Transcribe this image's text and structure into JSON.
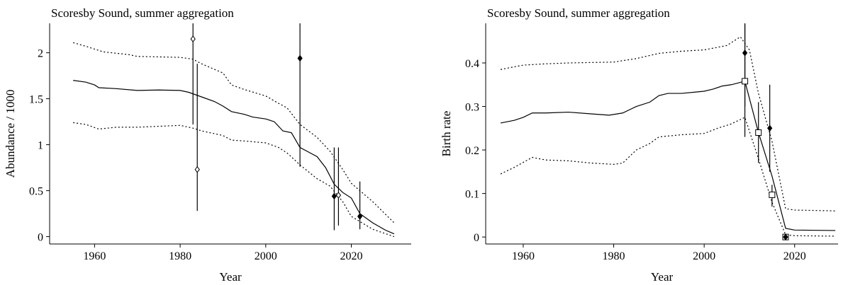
{
  "chart_data": [
    {
      "type": "line",
      "title": "Scoresby Sound, summer aggregation",
      "x_label": "Year",
      "y_label": "Abundance / 1000",
      "xlim": [
        1949.5,
        2034
      ],
      "ylim": [
        -0.08,
        2.32
      ],
      "xticks": [
        1960,
        1980,
        2000,
        2020
      ],
      "yticks": [
        0,
        0.5,
        1,
        1.5,
        2
      ],
      "series": [
        {
          "style": "solid",
          "color": "#000000",
          "x": [
            1955,
            1958,
            1960,
            1961,
            1965,
            1970,
            1975,
            1980,
            1982,
            1985,
            1988,
            1990,
            1992,
            1995,
            1997,
            2000,
            2002,
            2004,
            2006,
            2007,
            2008,
            2010,
            2012,
            2014,
            2016,
            2018,
            2020,
            2022,
            2025,
            2028,
            2030
          ],
          "values": [
            1.7,
            1.68,
            1.65,
            1.62,
            1.61,
            1.59,
            1.595,
            1.59,
            1.57,
            1.52,
            1.47,
            1.42,
            1.36,
            1.33,
            1.3,
            1.28,
            1.25,
            1.15,
            1.13,
            1.05,
            0.97,
            0.92,
            0.87,
            0.75,
            0.57,
            0.48,
            0.42,
            0.25,
            0.15,
            0.07,
            0.03
          ]
        },
        {
          "style": "dotted",
          "color": "#000000",
          "x": [
            1955,
            1958,
            1962,
            1968,
            1970,
            1980,
            1983,
            1985,
            1990,
            1992,
            1995,
            2000,
            2003,
            2005,
            2008,
            2012,
            2015,
            2018,
            2020,
            2025,
            2030
          ],
          "values": [
            2.11,
            2.07,
            2.01,
            1.98,
            1.96,
            1.95,
            1.93,
            1.88,
            1.78,
            1.65,
            1.6,
            1.53,
            1.45,
            1.4,
            1.22,
            1.08,
            0.93,
            0.73,
            0.58,
            0.38,
            0.15
          ]
        },
        {
          "style": "dotted",
          "color": "#000000",
          "x": [
            1955,
            1958,
            1961,
            1965,
            1970,
            1980,
            1983,
            1985,
            1990,
            1992,
            1995,
            2000,
            2003,
            2005,
            2008,
            2012,
            2015,
            2018,
            2020,
            2025,
            2030
          ],
          "values": [
            1.24,
            1.22,
            1.17,
            1.19,
            1.19,
            1.21,
            1.18,
            1.15,
            1.1,
            1.05,
            1.04,
            1.02,
            0.97,
            0.91,
            0.78,
            0.63,
            0.55,
            0.38,
            0.22,
            0.08,
            0.0
          ]
        },
        {
          "style": "none",
          "marker": "diamond-open",
          "color": "#000000",
          "x": [
            1983,
            1984,
            2017
          ],
          "values": [
            2.15,
            0.73,
            0.45
          ],
          "low": [
            1.22,
            0.28,
            0.12
          ],
          "high": [
            2.35,
            1.88,
            0.97
          ]
        },
        {
          "style": "none",
          "marker": "diamond-filled",
          "color": "#000000",
          "x": [
            2008,
            2016,
            2022
          ],
          "values": [
            1.94,
            0.44,
            0.22
          ],
          "low": [
            0.76,
            0.07,
            0.08
          ],
          "high": [
            2.4,
            0.97,
            0.6
          ]
        }
      ]
    },
    {
      "type": "line",
      "title": "Scoresby Sound, summer aggregation",
      "x_label": "Year",
      "y_label": "Birth rate",
      "xlim": [
        1951.7,
        2029.6
      ],
      "ylim": [
        -0.016,
        0.491
      ],
      "xticks": [
        1960,
        1980,
        2000,
        2020
      ],
      "yticks": [
        0,
        0.1,
        0.2,
        0.3,
        0.4
      ],
      "series": [
        {
          "style": "solid",
          "color": "#000000",
          "x": [
            1955,
            1958,
            1960,
            1962,
            1965,
            1970,
            1975,
            1979,
            1982,
            1985,
            1988,
            1990,
            1992,
            1995,
            1998,
            2000,
            2002,
            2004,
            2006,
            2009,
            2012,
            2015,
            2018,
            2020,
            2029
          ],
          "values": [
            0.262,
            0.268,
            0.275,
            0.285,
            0.285,
            0.287,
            0.283,
            0.28,
            0.285,
            0.3,
            0.31,
            0.325,
            0.33,
            0.33,
            0.333,
            0.335,
            0.34,
            0.347,
            0.35,
            0.358,
            0.24,
            0.14,
            0.02,
            0.016,
            0.015
          ]
        },
        {
          "style": "dotted",
          "color": "#000000",
          "x": [
            1955,
            1960,
            1965,
            1970,
            1980,
            1985,
            1990,
            1995,
            2000,
            2005,
            2008,
            2010,
            2012,
            2015,
            2018,
            2020,
            2029
          ],
          "values": [
            0.385,
            0.395,
            0.398,
            0.4,
            0.402,
            0.41,
            0.422,
            0.427,
            0.43,
            0.44,
            0.46,
            0.43,
            0.33,
            0.22,
            0.065,
            0.062,
            0.06
          ]
        },
        {
          "style": "dotted",
          "color": "#000000",
          "x": [
            1955,
            1958,
            1962,
            1965,
            1970,
            1975,
            1980,
            1982,
            1985,
            1988,
            1990,
            1995,
            2000,
            2003,
            2006,
            2009,
            2012,
            2015,
            2018,
            2020,
            2029
          ],
          "values": [
            0.145,
            0.16,
            0.183,
            0.177,
            0.175,
            0.17,
            0.167,
            0.17,
            0.2,
            0.215,
            0.23,
            0.235,
            0.238,
            0.25,
            0.26,
            0.275,
            0.18,
            0.08,
            0.005,
            0.003,
            0.002
          ]
        },
        {
          "style": "none",
          "marker": "square-open",
          "color": "#000000",
          "x": [
            2009,
            2012,
            2015,
            2018
          ],
          "values": [
            0.358,
            0.24,
            0.097,
            0.0
          ],
          "low": [
            0.23,
            0.17,
            0.07,
            -0.005
          ],
          "high": [
            0.49,
            0.31,
            0.12,
            0.005
          ]
        },
        {
          "style": "none",
          "marker": "diamond-filled",
          "color": "#000000",
          "x": [
            2009,
            2014.5,
            2018
          ],
          "values": [
            0.423,
            0.25,
            0.0
          ],
          "low": [
            0.3,
            0.15,
            -0.004
          ],
          "high": [
            0.5,
            0.35,
            0.004
          ]
        }
      ]
    }
  ]
}
